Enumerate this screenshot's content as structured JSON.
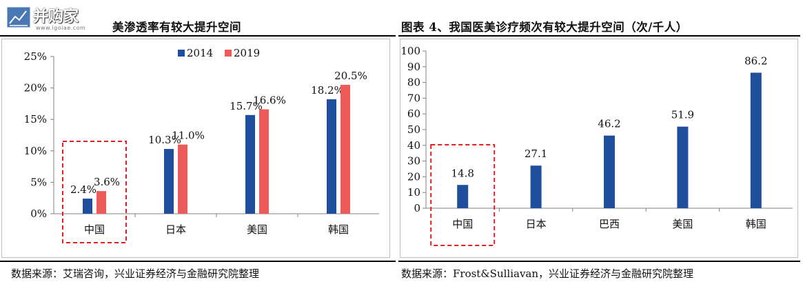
{
  "watermark": {
    "text": "并购家",
    "url": "www.igoiae.com"
  },
  "left": {
    "title": "美渗透率有较大提升空间",
    "source": "数据来源：艾瑞咨询，兴业证券经济与金融研究院整理"
  },
  "right": {
    "title": "图表 4、我国医美诊疗频次有较大提升空间（次/千人）",
    "source": "数据来源：Frost&Sulliavan，兴业证券经济与金融研究院整理"
  },
  "chart_data": [
    {
      "type": "bar",
      "categories": [
        "中国",
        "日本",
        "美国",
        "韩国"
      ],
      "series": [
        {
          "name": "2014",
          "values": [
            2.4,
            10.3,
            15.7,
            18.2
          ],
          "labels": [
            "2.4%",
            "10.3%",
            "15.7%",
            "18.2%"
          ],
          "color": "#1f4e9c"
        },
        {
          "name": "2019",
          "values": [
            3.6,
            11.0,
            16.6,
            20.5
          ],
          "labels": [
            "3.6%",
            "11.0%",
            "16.6%",
            "20.5%"
          ],
          "color": "#ed5a5a"
        }
      ],
      "ylim": [
        0,
        25
      ],
      "yticks": [
        "0%",
        "5%",
        "10%",
        "15%",
        "20%",
        "25%"
      ],
      "legend": "top",
      "highlight_category": "中国"
    },
    {
      "type": "bar",
      "categories": [
        "中国",
        "日本",
        "巴西",
        "美国",
        "韩国"
      ],
      "series": [
        {
          "values": [
            14.8,
            27.1,
            46.2,
            51.9,
            86.2
          ],
          "color": "#1f4e9c"
        }
      ],
      "ylim": [
        0,
        100
      ],
      "yticks": [
        "0",
        "10",
        "20",
        "30",
        "40",
        "50",
        "60",
        "70",
        "80",
        "90",
        "100"
      ],
      "highlight_category": "中国"
    }
  ]
}
